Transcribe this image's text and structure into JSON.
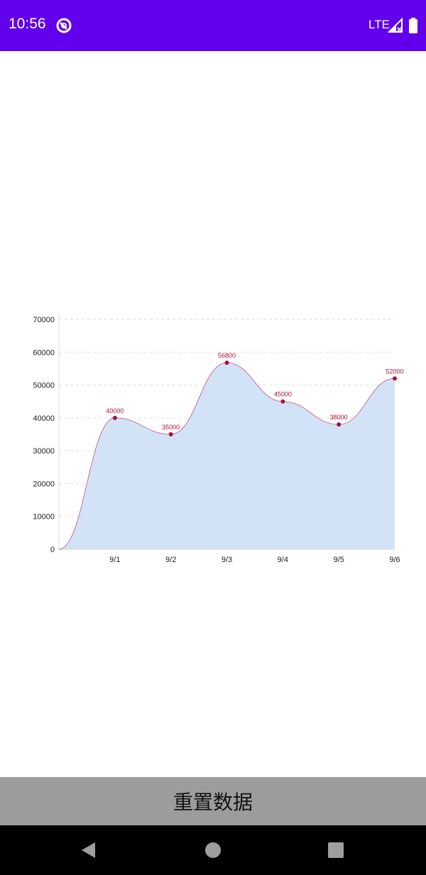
{
  "status_bar": {
    "time": "10:56",
    "network": "LTE",
    "background_color": "#6200ee",
    "icons": [
      "app-notification-icon",
      "signal-icon",
      "battery-icon"
    ]
  },
  "reset_button": {
    "label": "重置数据"
  },
  "nav_bar": {
    "icons": [
      "back-icon",
      "home-icon",
      "recent-apps-icon"
    ]
  },
  "chart_data": {
    "type": "area",
    "categories": [
      "9/1",
      "9/2",
      "9/3",
      "9/4",
      "9/5",
      "9/6"
    ],
    "values": [
      40000,
      35000,
      56800,
      45000,
      38000,
      52000
    ],
    "baseline_start": 0,
    "ylim": [
      0,
      70000
    ],
    "yticks": [
      0,
      10000,
      20000,
      30000,
      40000,
      50000,
      60000,
      70000
    ],
    "grid": true,
    "line_color": "#b0103a",
    "fill_color": "#d3e3f7",
    "point_color": "#b0103a",
    "title": "",
    "xlabel": "",
    "ylabel": ""
  }
}
